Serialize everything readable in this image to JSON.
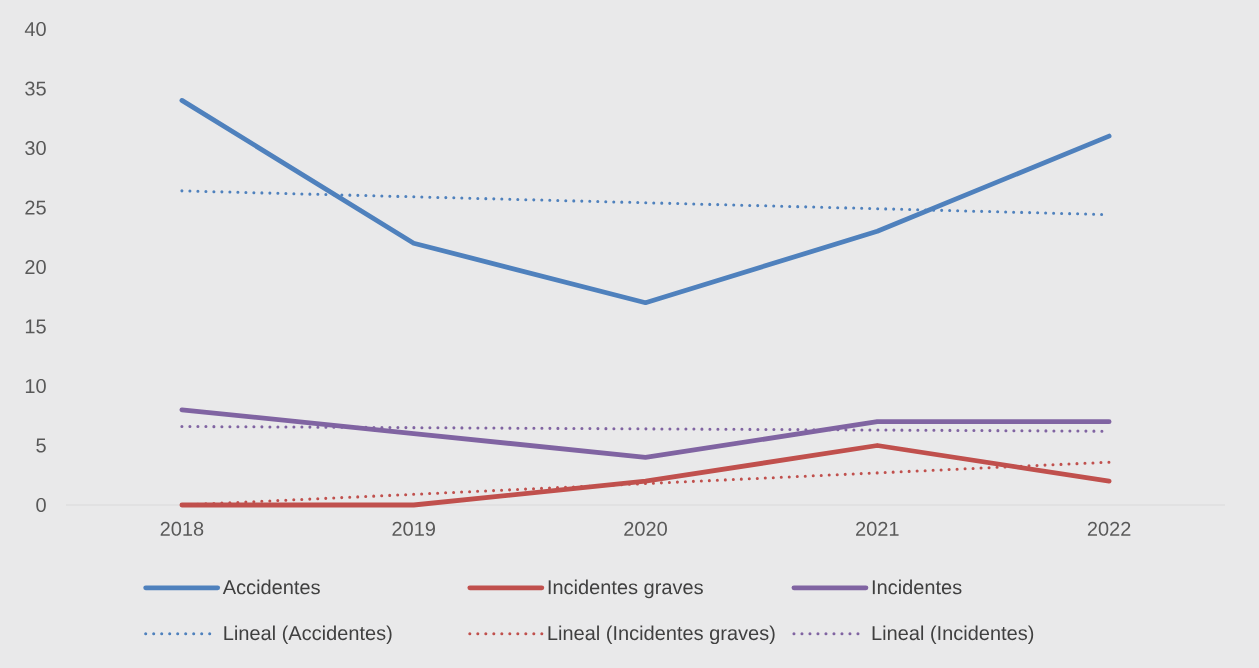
{
  "chart_data": {
    "type": "line",
    "categories": [
      "2018",
      "2019",
      "2020",
      "2021",
      "2022"
    ],
    "series": [
      {
        "name": "Accidentes",
        "color": "#4f81bd",
        "line_style": "solid",
        "values": [
          34,
          22,
          17,
          23,
          31
        ]
      },
      {
        "name": "Incidentes graves",
        "color": "#c0504d",
        "line_style": "solid",
        "values": [
          0,
          0,
          2,
          5,
          2
        ]
      },
      {
        "name": "Incidentes",
        "color": "#8064a2",
        "line_style": "solid",
        "values": [
          8,
          6,
          4,
          7,
          7
        ]
      },
      {
        "name": "Lineal (Accidentes)",
        "color": "#4f81bd",
        "line_style": "dotted",
        "values": [
          26.4,
          25.9,
          25.4,
          24.9,
          24.4
        ]
      },
      {
        "name": "Lineal (Incidentes graves)",
        "color": "#c0504d",
        "line_style": "dotted",
        "values": [
          0,
          0.9,
          1.8,
          2.7,
          3.6
        ]
      },
      {
        "name": "Lineal (Incidentes)",
        "color": "#8064a2",
        "line_style": "dotted",
        "values": [
          6.6,
          6.5,
          6.4,
          6.3,
          6.2
        ]
      }
    ],
    "ylim": [
      0,
      40
    ],
    "yticks": [
      0,
      5,
      10,
      15,
      20,
      25,
      30,
      35,
      40
    ],
    "legend": "bottom"
  }
}
